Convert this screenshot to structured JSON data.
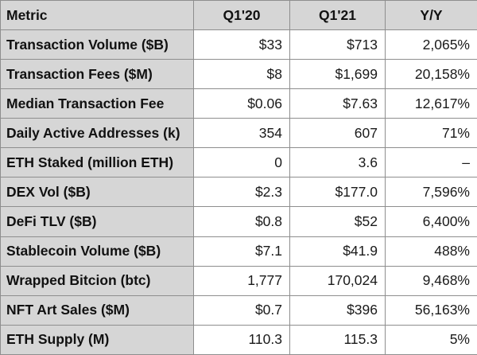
{
  "table": {
    "headers": {
      "metric": "Metric",
      "q1_20": "Q1'20",
      "q1_21": "Q1'21",
      "yy": "Y/Y"
    },
    "rows": [
      {
        "metric": "Transaction Volume ($B)",
        "q1_20": "$33",
        "q1_21": "$713",
        "yy": "2,065%"
      },
      {
        "metric": "Transaction Fees ($M)",
        "q1_20": "$8",
        "q1_21": "$1,699",
        "yy": "20,158%"
      },
      {
        "metric": "Median Transaction Fee",
        "q1_20": "$0.06",
        "q1_21": "$7.63",
        "yy": "12,617%"
      },
      {
        "metric": "Daily Active Addresses (k)",
        "q1_20": "354",
        "q1_21": "607",
        "yy": "71%"
      },
      {
        "metric": "ETH Staked (million ETH)",
        "q1_20": "0",
        "q1_21": "3.6",
        "yy": "–"
      },
      {
        "metric": "DEX Vol ($B)",
        "q1_20": "$2.3",
        "q1_21": "$177.0",
        "yy": "7,596%"
      },
      {
        "metric": "DeFi TLV ($B)",
        "q1_20": "$0.8",
        "q1_21": "$52",
        "yy": "6,400%"
      },
      {
        "metric": "Stablecoin Volume ($B)",
        "q1_20": "$7.1",
        "q1_21": "$41.9",
        "yy": "488%"
      },
      {
        "metric": "Wrapped Bitcion (btc)",
        "q1_20": "1,777",
        "q1_21": "170,024",
        "yy": "9,468%"
      },
      {
        "metric": "NFT Art Sales ($M)",
        "q1_20": "$0.7",
        "q1_21": "$396",
        "yy": "56,163%"
      },
      {
        "metric": "ETH Supply (M)",
        "q1_20": "110.3",
        "q1_21": "115.3",
        "yy": "5%"
      }
    ]
  }
}
